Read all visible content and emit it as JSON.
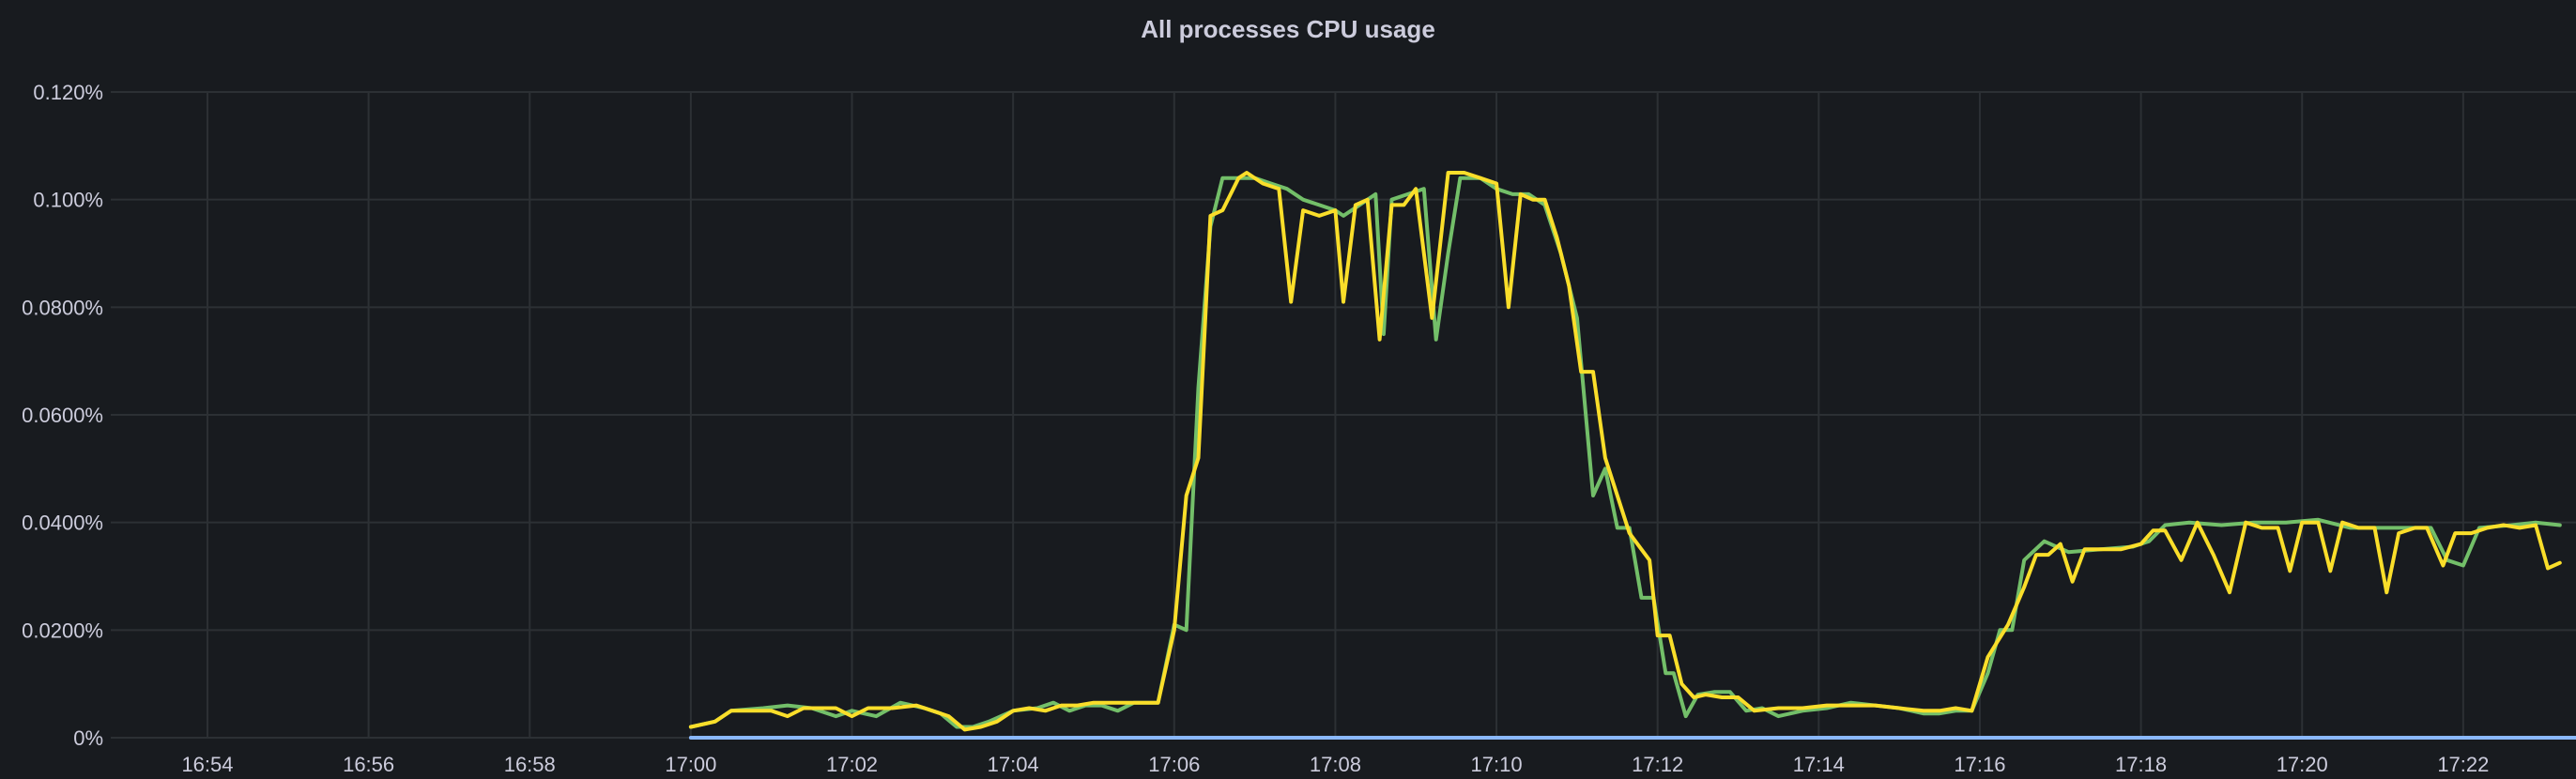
{
  "chart_data": {
    "type": "line",
    "title": "All processes CPU usage",
    "xlabel": "",
    "ylabel": "",
    "x_ticks": [
      "16:54",
      "16:56",
      "16:58",
      "17:00",
      "17:02",
      "17:04",
      "17:06",
      "17:08",
      "17:10",
      "17:12",
      "17:14",
      "17:16",
      "17:18",
      "17:20",
      "17:22"
    ],
    "x_tick_minutes": [
      1014,
      1016,
      1018,
      1020,
      1022,
      1024,
      1026,
      1028,
      1030,
      1032,
      1034,
      1036,
      1038,
      1040,
      1042
    ],
    "xlim_minutes": [
      1012.8,
      1043.4
    ],
    "y_ticks": [
      {
        "value": 0,
        "label": "0%"
      },
      {
        "value": 0.02,
        "label": "0.0200%"
      },
      {
        "value": 0.04,
        "label": "0.0400%"
      },
      {
        "value": 0.06,
        "label": "0.0600%"
      },
      {
        "value": 0.08,
        "label": "0.0800%"
      },
      {
        "value": 0.1,
        "label": "0.100%"
      },
      {
        "value": 0.12,
        "label": "0.120%"
      }
    ],
    "ylim": [
      0,
      0.12
    ],
    "grid": true,
    "legend": "none",
    "series": [
      {
        "color": "#73bf69",
        "points": [
          [
            1020.0,
            0.002
          ],
          [
            1020.3,
            0.003
          ],
          [
            1020.5,
            0.005
          ],
          [
            1020.9,
            0.0055
          ],
          [
            1021.2,
            0.006
          ],
          [
            1021.5,
            0.0055
          ],
          [
            1021.8,
            0.004
          ],
          [
            1022.0,
            0.005
          ],
          [
            1022.3,
            0.004
          ],
          [
            1022.6,
            0.0065
          ],
          [
            1022.9,
            0.0055
          ],
          [
            1023.1,
            0.0045
          ],
          [
            1023.3,
            0.002
          ],
          [
            1023.5,
            0.002
          ],
          [
            1023.7,
            0.003
          ],
          [
            1024.0,
            0.005
          ],
          [
            1024.3,
            0.0055
          ],
          [
            1024.5,
            0.0065
          ],
          [
            1024.7,
            0.005
          ],
          [
            1024.9,
            0.006
          ],
          [
            1025.1,
            0.006
          ],
          [
            1025.3,
            0.005
          ],
          [
            1025.5,
            0.0065
          ],
          [
            1025.8,
            0.0065
          ],
          [
            1026.0,
            0.021
          ],
          [
            1026.15,
            0.02
          ],
          [
            1026.3,
            0.065
          ],
          [
            1026.45,
            0.095
          ],
          [
            1026.6,
            0.104
          ],
          [
            1026.8,
            0.104
          ],
          [
            1027.0,
            0.104
          ],
          [
            1027.2,
            0.103
          ],
          [
            1027.4,
            0.102
          ],
          [
            1027.6,
            0.1
          ],
          [
            1027.8,
            0.099
          ],
          [
            1028.0,
            0.098
          ],
          [
            1028.1,
            0.097
          ],
          [
            1028.3,
            0.099
          ],
          [
            1028.5,
            0.101
          ],
          [
            1028.6,
            0.075
          ],
          [
            1028.7,
            0.1
          ],
          [
            1028.9,
            0.101
          ],
          [
            1029.1,
            0.102
          ],
          [
            1029.25,
            0.074
          ],
          [
            1029.4,
            0.09
          ],
          [
            1029.55,
            0.104
          ],
          [
            1029.8,
            0.104
          ],
          [
            1030.0,
            0.102
          ],
          [
            1030.2,
            0.101
          ],
          [
            1030.4,
            0.101
          ],
          [
            1030.6,
            0.099
          ],
          [
            1030.8,
            0.09
          ],
          [
            1031.0,
            0.078
          ],
          [
            1031.2,
            0.045
          ],
          [
            1031.35,
            0.05
          ],
          [
            1031.5,
            0.039
          ],
          [
            1031.65,
            0.039
          ],
          [
            1031.8,
            0.026
          ],
          [
            1031.95,
            0.026
          ],
          [
            1032.1,
            0.012
          ],
          [
            1032.2,
            0.012
          ],
          [
            1032.35,
            0.004
          ],
          [
            1032.5,
            0.008
          ],
          [
            1032.7,
            0.0085
          ],
          [
            1032.9,
            0.0085
          ],
          [
            1033.1,
            0.005
          ],
          [
            1033.3,
            0.0055
          ],
          [
            1033.5,
            0.004
          ],
          [
            1033.8,
            0.005
          ],
          [
            1034.1,
            0.0055
          ],
          [
            1034.4,
            0.0065
          ],
          [
            1034.7,
            0.006
          ],
          [
            1035.0,
            0.0055
          ],
          [
            1035.3,
            0.0045
          ],
          [
            1035.5,
            0.0045
          ],
          [
            1035.7,
            0.005
          ],
          [
            1035.9,
            0.005
          ],
          [
            1036.1,
            0.012
          ],
          [
            1036.25,
            0.02
          ],
          [
            1036.4,
            0.02
          ],
          [
            1036.55,
            0.033
          ],
          [
            1036.8,
            0.0365
          ],
          [
            1037.1,
            0.0345
          ],
          [
            1037.5,
            0.035
          ],
          [
            1037.9,
            0.0355
          ],
          [
            1038.1,
            0.0365
          ],
          [
            1038.3,
            0.0395
          ],
          [
            1038.6,
            0.04
          ],
          [
            1039.0,
            0.0395
          ],
          [
            1039.4,
            0.04
          ],
          [
            1039.8,
            0.04
          ],
          [
            1040.2,
            0.0405
          ],
          [
            1040.6,
            0.039
          ],
          [
            1041.0,
            0.039
          ],
          [
            1041.4,
            0.039
          ],
          [
            1041.6,
            0.039
          ],
          [
            1041.8,
            0.033
          ],
          [
            1042.0,
            0.032
          ],
          [
            1042.2,
            0.039
          ],
          [
            1042.6,
            0.0395
          ],
          [
            1042.9,
            0.04
          ],
          [
            1043.2,
            0.0395
          ]
        ]
      },
      {
        "color": "#fade2a",
        "points": [
          [
            1020.0,
            0.002
          ],
          [
            1020.3,
            0.003
          ],
          [
            1020.5,
            0.005
          ],
          [
            1020.8,
            0.005
          ],
          [
            1021.0,
            0.005
          ],
          [
            1021.2,
            0.004
          ],
          [
            1021.4,
            0.0055
          ],
          [
            1021.6,
            0.0055
          ],
          [
            1021.8,
            0.0055
          ],
          [
            1022.0,
            0.004
          ],
          [
            1022.2,
            0.0055
          ],
          [
            1022.5,
            0.0055
          ],
          [
            1022.8,
            0.006
          ],
          [
            1023.0,
            0.005
          ],
          [
            1023.2,
            0.004
          ],
          [
            1023.4,
            0.0015
          ],
          [
            1023.6,
            0.002
          ],
          [
            1023.8,
            0.003
          ],
          [
            1024.0,
            0.005
          ],
          [
            1024.2,
            0.0055
          ],
          [
            1024.4,
            0.005
          ],
          [
            1024.6,
            0.006
          ],
          [
            1024.8,
            0.006
          ],
          [
            1025.0,
            0.0065
          ],
          [
            1025.3,
            0.0065
          ],
          [
            1025.6,
            0.0065
          ],
          [
            1025.8,
            0.0065
          ],
          [
            1026.0,
            0.02
          ],
          [
            1026.15,
            0.045
          ],
          [
            1026.3,
            0.052
          ],
          [
            1026.45,
            0.097
          ],
          [
            1026.6,
            0.098
          ],
          [
            1026.8,
            0.104
          ],
          [
            1026.9,
            0.105
          ],
          [
            1027.1,
            0.103
          ],
          [
            1027.3,
            0.102
          ],
          [
            1027.45,
            0.081
          ],
          [
            1027.6,
            0.098
          ],
          [
            1027.8,
            0.097
          ],
          [
            1028.0,
            0.098
          ],
          [
            1028.1,
            0.081
          ],
          [
            1028.25,
            0.099
          ],
          [
            1028.4,
            0.1
          ],
          [
            1028.55,
            0.074
          ],
          [
            1028.7,
            0.099
          ],
          [
            1028.85,
            0.099
          ],
          [
            1029.0,
            0.102
          ],
          [
            1029.2,
            0.078
          ],
          [
            1029.4,
            0.105
          ],
          [
            1029.6,
            0.105
          ],
          [
            1029.8,
            0.104
          ],
          [
            1030.0,
            0.103
          ],
          [
            1030.15,
            0.08
          ],
          [
            1030.3,
            0.101
          ],
          [
            1030.45,
            0.1
          ],
          [
            1030.6,
            0.1
          ],
          [
            1030.75,
            0.093
          ],
          [
            1030.9,
            0.084
          ],
          [
            1031.05,
            0.068
          ],
          [
            1031.2,
            0.068
          ],
          [
            1031.35,
            0.052
          ],
          [
            1031.5,
            0.045
          ],
          [
            1031.65,
            0.038
          ],
          [
            1031.8,
            0.035
          ],
          [
            1031.9,
            0.033
          ],
          [
            1032.0,
            0.019
          ],
          [
            1032.15,
            0.019
          ],
          [
            1032.3,
            0.01
          ],
          [
            1032.45,
            0.0075
          ],
          [
            1032.6,
            0.008
          ],
          [
            1032.8,
            0.0075
          ],
          [
            1033.0,
            0.0075
          ],
          [
            1033.2,
            0.005
          ],
          [
            1033.5,
            0.0055
          ],
          [
            1033.8,
            0.0055
          ],
          [
            1034.1,
            0.006
          ],
          [
            1034.4,
            0.006
          ],
          [
            1034.7,
            0.006
          ],
          [
            1035.0,
            0.0055
          ],
          [
            1035.3,
            0.005
          ],
          [
            1035.5,
            0.005
          ],
          [
            1035.7,
            0.0055
          ],
          [
            1035.9,
            0.005
          ],
          [
            1036.1,
            0.015
          ],
          [
            1036.35,
            0.021
          ],
          [
            1036.55,
            0.028
          ],
          [
            1036.7,
            0.034
          ],
          [
            1036.85,
            0.034
          ],
          [
            1037.0,
            0.036
          ],
          [
            1037.15,
            0.029
          ],
          [
            1037.3,
            0.035
          ],
          [
            1037.5,
            0.035
          ],
          [
            1037.75,
            0.035
          ],
          [
            1038.0,
            0.036
          ],
          [
            1038.15,
            0.0385
          ],
          [
            1038.3,
            0.0385
          ],
          [
            1038.5,
            0.033
          ],
          [
            1038.7,
            0.04
          ],
          [
            1038.9,
            0.034
          ],
          [
            1039.1,
            0.027
          ],
          [
            1039.3,
            0.04
          ],
          [
            1039.5,
            0.039
          ],
          [
            1039.7,
            0.039
          ],
          [
            1039.85,
            0.031
          ],
          [
            1040.0,
            0.04
          ],
          [
            1040.2,
            0.04
          ],
          [
            1040.35,
            0.031
          ],
          [
            1040.5,
            0.04
          ],
          [
            1040.7,
            0.039
          ],
          [
            1040.9,
            0.039
          ],
          [
            1041.05,
            0.027
          ],
          [
            1041.2,
            0.038
          ],
          [
            1041.4,
            0.039
          ],
          [
            1041.55,
            0.039
          ],
          [
            1041.75,
            0.032
          ],
          [
            1041.9,
            0.038
          ],
          [
            1042.1,
            0.038
          ],
          [
            1042.3,
            0.039
          ],
          [
            1042.5,
            0.0395
          ],
          [
            1042.7,
            0.039
          ],
          [
            1042.9,
            0.0395
          ],
          [
            1043.05,
            0.0315
          ],
          [
            1043.2,
            0.0325
          ]
        ]
      },
      {
        "color": "#8ab8ff",
        "points": [
          [
            1020.0,
            0.0
          ],
          [
            1043.4,
            0.0
          ]
        ]
      }
    ]
  }
}
